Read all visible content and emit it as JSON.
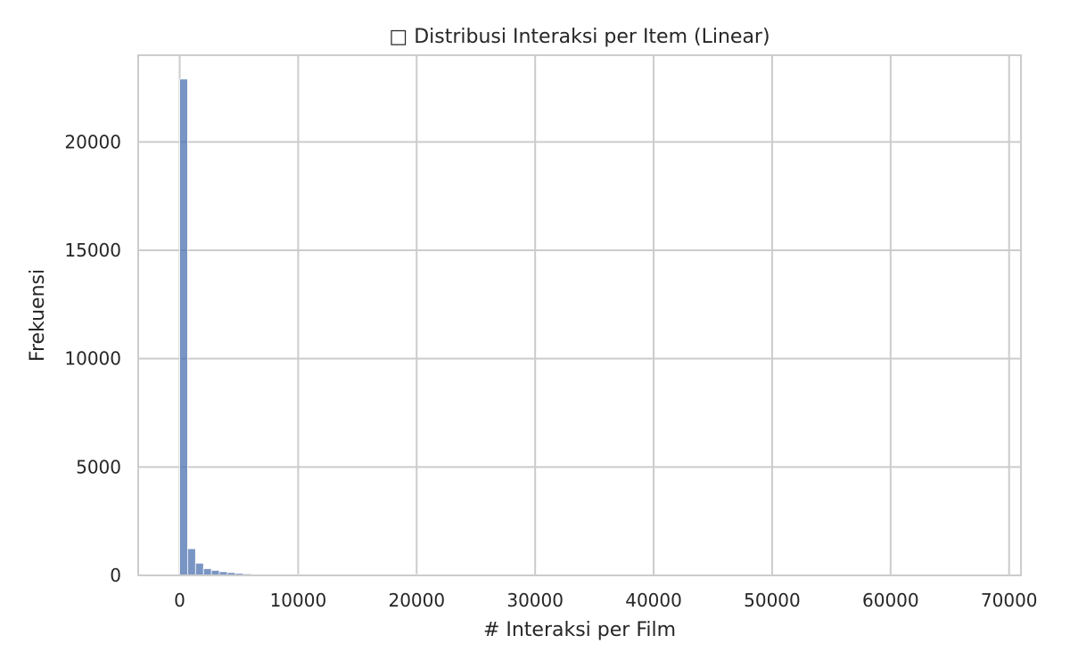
{
  "chart_data": {
    "type": "bar",
    "title": "□ Distribusi Interaksi per Item (Linear)",
    "xlabel": "# Interaksi per Film",
    "ylabel": "Frekuensi",
    "xlim": [
      -3500,
      71000
    ],
    "ylim": [
      0,
      24000
    ],
    "xticks": [
      0,
      10000,
      20000,
      30000,
      40000,
      50000,
      60000,
      70000
    ],
    "xtick_labels": [
      "0",
      "10000",
      "20000",
      "30000",
      "40000",
      "50000",
      "60000",
      "70000"
    ],
    "yticks": [
      0,
      5000,
      10000,
      15000,
      20000
    ],
    "ytick_labels": [
      "0",
      "5000",
      "10000",
      "15000",
      "20000"
    ],
    "grid": true,
    "color": "#4c72b0",
    "bin_start": 0,
    "bin_width": 670,
    "values": [
      22900,
      1230,
      560,
      310,
      230,
      170,
      130,
      95,
      70,
      55,
      40,
      30,
      22,
      16,
      12,
      9,
      7,
      5,
      4,
      3,
      3,
      2,
      2,
      2,
      1,
      1,
      1,
      1,
      1,
      1,
      1,
      1,
      1,
      0,
      0,
      0,
      0,
      0,
      0,
      0,
      0,
      0,
      0,
      0,
      0,
      0,
      0,
      0,
      0,
      0,
      0,
      0,
      0,
      0,
      0,
      0,
      0,
      0,
      0,
      0,
      0,
      0,
      0,
      0,
      0,
      0,
      0,
      0,
      0,
      0,
      0,
      0,
      0,
      0,
      0,
      0,
      0,
      0,
      0,
      0,
      0,
      0,
      0,
      0,
      0,
      0,
      0,
      0,
      0,
      0,
      0,
      0,
      0,
      0,
      0,
      0,
      0,
      0,
      0,
      1
    ]
  }
}
